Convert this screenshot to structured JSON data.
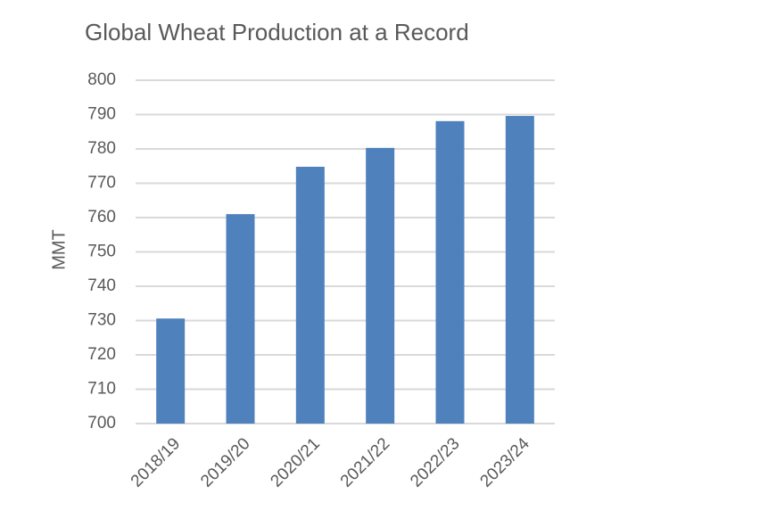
{
  "chart_data": {
    "type": "bar",
    "title": "Global Wheat Production at a Record",
    "y_label": "MMT",
    "categories": [
      "2018/19",
      "2019/20",
      "2020/21",
      "2021/22",
      "2022/23",
      "2023/24"
    ],
    "values": [
      730.6,
      761.0,
      774.8,
      780.3,
      788.1,
      789.6
    ],
    "color": "#4f81bd",
    "ylim": [
      700,
      800
    ],
    "yticks": [
      700,
      710,
      720,
      730,
      740,
      750,
      760,
      770,
      780,
      790,
      800
    ],
    "grid": true
  }
}
